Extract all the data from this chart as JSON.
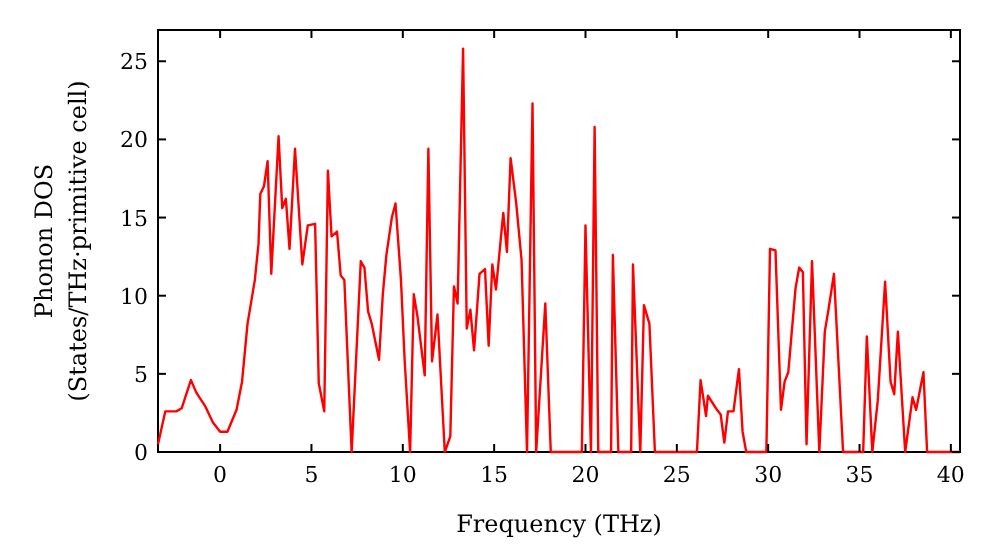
{
  "chart_data": {
    "type": "line",
    "xlabel": "Frequency (THz)",
    "ylabel": "Phonon DOS\n(States/THz·primitive cell)",
    "xlim": [
      -3.4,
      40.5
    ],
    "ylim": [
      0,
      27
    ],
    "xticks": [
      0,
      5,
      10,
      15,
      20,
      25,
      30,
      35,
      40
    ],
    "yticks": [
      0,
      5,
      10,
      15,
      20,
      25
    ],
    "grid": false,
    "marker": "none",
    "line_style": "solid",
    "series": [
      {
        "color": "#ff0000",
        "x": [
          -3.4,
          -3.0,
          -2.4,
          -2.1,
          -1.6,
          -1.3,
          -0.8,
          -0.4,
          0,
          0.4,
          0.9,
          1.2,
          1.5,
          1.9,
          2.1,
          2.2,
          2.4,
          2.6,
          2.8,
          3.2,
          3.4,
          3.6,
          3.8,
          4.1,
          4.5,
          4.8,
          5.2,
          5.4,
          5.7,
          5.9,
          6.1,
          6.4,
          6.6,
          6.8,
          7.2,
          7.7,
          7.9,
          8.1,
          8.3,
          8.7,
          8.9,
          9.1,
          9.4,
          9.6,
          9.9,
          10.1,
          10.4,
          10.6,
          10.8,
          11.2,
          11.4,
          11.6,
          11.9,
          12.3,
          12.6,
          12.8,
          13.0,
          13.3,
          13.5,
          13.7,
          13.9,
          14.2,
          14.5,
          14.7,
          14.9,
          15.1,
          15.5,
          15.7,
          15.9,
          16.2,
          16.5,
          16.8,
          17.1,
          17.3,
          17.8,
          18.1,
          19.8,
          20,
          20.3,
          20.5,
          20.7,
          21.4,
          21.5,
          21.8,
          22.5,
          22.6,
          23,
          23.2,
          23.5,
          23.8,
          26.1,
          26.3,
          26.6,
          26.7,
          27.2,
          27.4,
          27.6,
          27.8,
          28.1,
          28.4,
          28.6,
          28.8,
          29.9,
          30.1,
          30.4,
          30.7,
          30.9,
          31.1,
          31.5,
          31.7,
          31.9,
          32.1,
          32.4,
          32.8,
          33.1,
          33.3,
          33.6,
          34.1,
          35.2,
          35.4,
          35.7,
          36,
          36.4,
          36.7,
          36.9,
          37.1,
          37.5,
          37.9,
          38.1,
          38.5,
          38.7,
          40.5
        ],
        "values": [
          0.5,
          2.6,
          2.6,
          2.8,
          4.6,
          3.8,
          2.9,
          1.9,
          1.3,
          1.3,
          2.7,
          4.5,
          8.2,
          11,
          13.3,
          16.5,
          17,
          18.6,
          11.4,
          20.2,
          15.6,
          16.2,
          13,
          19.4,
          12,
          14.5,
          14.6,
          4.4,
          2.6,
          18,
          13.8,
          14.1,
          11.3,
          11,
          0,
          12.2,
          11.8,
          9,
          8.2,
          5.9,
          10,
          12.6,
          15,
          15.9,
          11,
          5.9,
          0,
          10.1,
          8.7,
          4.9,
          19.4,
          5.8,
          8.8,
          0,
          1,
          10.6,
          9.5,
          25.8,
          7.9,
          9.1,
          6.5,
          11.4,
          11.7,
          6.8,
          12,
          10.4,
          15.3,
          12.8,
          18.8,
          16,
          12.3,
          0,
          22.3,
          0,
          9.5,
          0,
          0,
          14.5,
          0,
          20.8,
          0,
          0,
          12.6,
          0,
          0,
          12,
          0,
          9.4,
          8.2,
          0,
          0,
          4.6,
          2.3,
          3.6,
          2.7,
          2.4,
          0.6,
          2.6,
          2.6,
          5.3,
          1.3,
          0,
          0,
          13,
          12.9,
          2.7,
          4.5,
          5.1,
          10.5,
          11.8,
          11.5,
          0.5,
          12.2,
          0,
          7.7,
          9.1,
          11.4,
          0,
          0,
          7.4,
          0,
          3.3,
          10.9,
          4.5,
          3.7,
          7.7,
          0,
          3.5,
          2.7,
          5.1,
          0,
          0
        ]
      }
    ]
  }
}
